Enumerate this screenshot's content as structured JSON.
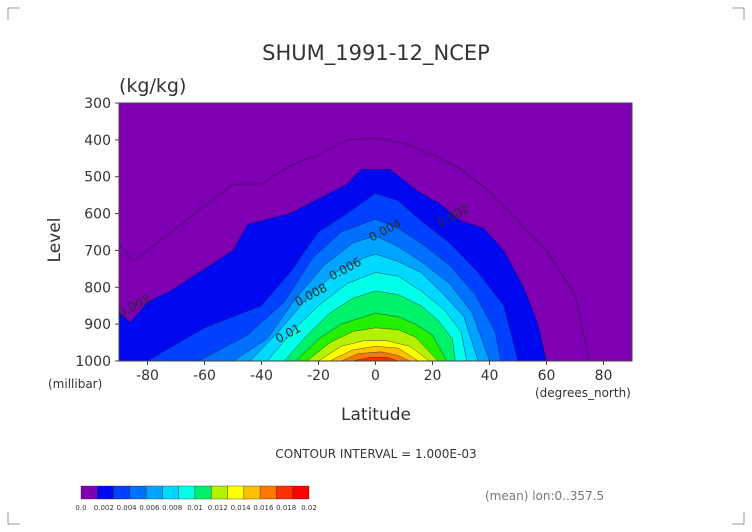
{
  "chart_data": {
    "type": "filled-contour",
    "title": "SHUM_1991-12_NCEP",
    "units_label": "(kg/kg)",
    "xlabel": "Latitude",
    "xunit": "(degrees_north)",
    "ylabel": "Level",
    "yunit": "(millibar)",
    "xlim": [
      -90,
      90
    ],
    "ylim": [
      300,
      1000
    ],
    "y_inverted": true,
    "x_ticks": [
      -80,
      -60,
      -40,
      -20,
      0,
      20,
      40,
      60,
      80
    ],
    "y_ticks": [
      300,
      400,
      500,
      600,
      700,
      800,
      900,
      1000
    ],
    "contour_interval_text": "CONTOUR INTERVAL = 1.000E-03",
    "footnote": "(mean) lon:0..357.5",
    "contour_labels": [
      {
        "text": "0.002",
        "lat": -84,
        "lev": 860
      },
      {
        "text": "0.002",
        "lat": 28,
        "lev": 615
      },
      {
        "text": "0.004",
        "lat": 4,
        "lev": 655
      },
      {
        "text": "0.006",
        "lat": -10,
        "lev": 760
      },
      {
        "text": "0.008",
        "lat": -22,
        "lev": 830
      },
      {
        "text": "0.01",
        "lat": -30,
        "lev": 935
      }
    ],
    "levels": [
      {
        "min": 0.0,
        "max": 0.002,
        "color": "#7f00b2"
      },
      {
        "min": 0.002,
        "max": 0.003,
        "color": "#0008f0"
      },
      {
        "min": 0.003,
        "max": 0.004,
        "color": "#0040ff"
      },
      {
        "min": 0.004,
        "max": 0.005,
        "color": "#0070ff"
      },
      {
        "min": 0.005,
        "max": 0.006,
        "color": "#00a4ff"
      },
      {
        "min": 0.006,
        "max": 0.007,
        "color": "#00d8ff"
      },
      {
        "min": 0.007,
        "max": 0.008,
        "color": "#00ffe6"
      },
      {
        "min": 0.008,
        "max": 0.009,
        "color": "#00f26a"
      },
      {
        "min": 0.009,
        "max": 0.01,
        "color": "#23f000"
      },
      {
        "min": 0.01,
        "max": 0.011,
        "color": "#b4f000"
      },
      {
        "min": 0.011,
        "max": 0.012,
        "color": "#ffff00"
      },
      {
        "min": 0.012,
        "max": 0.013,
        "color": "#ffc000"
      },
      {
        "min": 0.013,
        "max": 0.014,
        "color": "#ff7800"
      },
      {
        "min": 0.014,
        "max": 0.015,
        "color": "#ff3000"
      }
    ],
    "colorbar": {
      "colors": [
        "#7f00b2",
        "#0008f0",
        "#0040ff",
        "#0070ff",
        "#00a4ff",
        "#00d8ff",
        "#00ffe6",
        "#00f26a",
        "#b4f000",
        "#ffff00",
        "#ffc000",
        "#ff7800",
        "#ff3000",
        "#ff0000"
      ],
      "labels": [
        "0.0",
        "0.002",
        "0.004",
        "0.006",
        "0.008",
        "0.01",
        "0.012",
        "0.014",
        "0.016",
        "0.018",
        "0.02"
      ]
    },
    "boundaries": [
      {
        "value": 0.0015,
        "line_only": true,
        "points": [
          [
            -90,
            680
          ],
          [
            -85,
            730
          ],
          [
            -80,
            700
          ],
          [
            -70,
            640
          ],
          [
            -60,
            580
          ],
          [
            -50,
            520
          ],
          [
            -40,
            520
          ],
          [
            -30,
            470
          ],
          [
            -20,
            440
          ],
          [
            -10,
            400
          ],
          [
            0,
            395
          ],
          [
            10,
            410
          ],
          [
            20,
            440
          ],
          [
            30,
            480
          ],
          [
            40,
            540
          ],
          [
            50,
            620
          ],
          [
            60,
            700
          ],
          [
            70,
            820
          ],
          [
            75,
            1000
          ]
        ]
      },
      {
        "value": 0.002,
        "points": [
          [
            -90,
            870
          ],
          [
            -86,
            895
          ],
          [
            -80,
            840
          ],
          [
            -72,
            810
          ],
          [
            -62,
            760
          ],
          [
            -50,
            700
          ],
          [
            -45,
            630
          ],
          [
            -38,
            615
          ],
          [
            -30,
            600
          ],
          [
            -20,
            560
          ],
          [
            -10,
            520
          ],
          [
            -5,
            480
          ],
          [
            5,
            480
          ],
          [
            15,
            540
          ],
          [
            22,
            570
          ],
          [
            30,
            620
          ],
          [
            38,
            640
          ],
          [
            45,
            700
          ],
          [
            52,
            800
          ],
          [
            57,
            900
          ],
          [
            60,
            1000
          ]
        ]
      },
      {
        "value": 0.003,
        "points": [
          [
            -80,
            1000
          ],
          [
            -60,
            910
          ],
          [
            -40,
            850
          ],
          [
            -30,
            760
          ],
          [
            -20,
            650
          ],
          [
            -10,
            600
          ],
          [
            0,
            545
          ],
          [
            8,
            565
          ],
          [
            16,
            620
          ],
          [
            26,
            680
          ],
          [
            36,
            760
          ],
          [
            45,
            850
          ],
          [
            50,
            1000
          ]
        ]
      },
      {
        "value": 0.004,
        "points": [
          [
            -62,
            1000
          ],
          [
            -45,
            930
          ],
          [
            -32,
            840
          ],
          [
            -22,
            720
          ],
          [
            -12,
            650
          ],
          [
            0,
            615
          ],
          [
            8,
            640
          ],
          [
            16,
            680
          ],
          [
            26,
            740
          ],
          [
            35,
            820
          ],
          [
            42,
            920
          ],
          [
            44,
            1000
          ]
        ]
      },
      {
        "value": 0.005,
        "points": [
          [
            -50,
            1000
          ],
          [
            -38,
            940
          ],
          [
            -28,
            830
          ],
          [
            -18,
            740
          ],
          [
            -8,
            680
          ],
          [
            0,
            660
          ],
          [
            8,
            690
          ],
          [
            16,
            730
          ],
          [
            26,
            790
          ],
          [
            34,
            870
          ],
          [
            40,
            1000
          ]
        ]
      },
      {
        "value": 0.006,
        "points": [
          [
            -44,
            1000
          ],
          [
            -34,
            920
          ],
          [
            -24,
            830
          ],
          [
            -14,
            760
          ],
          [
            -4,
            720
          ],
          [
            0,
            710
          ],
          [
            8,
            730
          ],
          [
            16,
            760
          ],
          [
            24,
            820
          ],
          [
            31,
            880
          ],
          [
            36,
            1000
          ]
        ]
      },
      {
        "value": 0.007,
        "points": [
          [
            -38,
            1000
          ],
          [
            -28,
            910
          ],
          [
            -20,
            850
          ],
          [
            -10,
            790
          ],
          [
            0,
            760
          ],
          [
            8,
            770
          ],
          [
            16,
            810
          ],
          [
            24,
            860
          ],
          [
            30,
            920
          ],
          [
            32,
            1000
          ]
        ]
      },
      {
        "value": 0.008,
        "points": [
          [
            -32,
            1000
          ],
          [
            -24,
            930
          ],
          [
            -16,
            870
          ],
          [
            -8,
            830
          ],
          [
            0,
            810
          ],
          [
            8,
            820
          ],
          [
            16,
            850
          ],
          [
            22,
            890
          ],
          [
            27,
            940
          ],
          [
            28,
            1000
          ]
        ]
      },
      {
        "value": 0.009,
        "points": [
          [
            -28,
            1000
          ],
          [
            -20,
            940
          ],
          [
            -12,
            900
          ],
          [
            -4,
            880
          ],
          [
            0,
            870
          ],
          [
            8,
            880
          ],
          [
            14,
            900
          ],
          [
            20,
            930
          ],
          [
            25,
            1000
          ]
        ]
      },
      {
        "value": 0.01,
        "points": [
          [
            -24,
            1000
          ],
          [
            -16,
            950
          ],
          [
            -8,
            920
          ],
          [
            0,
            910
          ],
          [
            8,
            915
          ],
          [
            14,
            935
          ],
          [
            22,
            1000
          ]
        ]
      },
      {
        "value": 0.011,
        "points": [
          [
            -20,
            1000
          ],
          [
            -12,
            960
          ],
          [
            -4,
            945
          ],
          [
            4,
            945
          ],
          [
            12,
            960
          ],
          [
            19,
            1000
          ]
        ]
      },
      {
        "value": 0.012,
        "points": [
          [
            -16,
            1000
          ],
          [
            -8,
            970
          ],
          [
            0,
            960
          ],
          [
            8,
            965
          ],
          [
            15,
            1000
          ]
        ]
      },
      {
        "value": 0.013,
        "points": [
          [
            -12,
            1000
          ],
          [
            -6,
            980
          ],
          [
            2,
            975
          ],
          [
            8,
            985
          ],
          [
            12,
            1000
          ]
        ]
      },
      {
        "value": 0.014,
        "points": [
          [
            -8,
            1000
          ],
          [
            -2,
            990
          ],
          [
            4,
            990
          ],
          [
            8,
            1000
          ]
        ]
      }
    ]
  }
}
